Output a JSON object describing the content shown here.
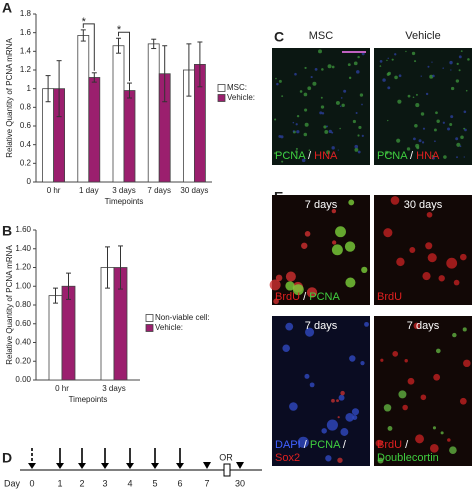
{
  "panel_labels": [
    "A",
    "B",
    "C",
    "D",
    "E"
  ],
  "chart_data": [
    {
      "type": "bar",
      "y_label": "Relative Quantity of PCNA mRNA",
      "x_label": "Timepoints",
      "categories": [
        "0 hr",
        "1 day",
        "3 days",
        "7 days",
        "30 days"
      ],
      "series": [
        {
          "name": "MSC:",
          "color": "#ffffff",
          "values": [
            1.0,
            1.57,
            1.46,
            1.48,
            1.2
          ],
          "errors": [
            0.14,
            0.06,
            0.08,
            0.05,
            0.28
          ]
        },
        {
          "name": "Vehicle:",
          "color": "#9b1f6e",
          "values": [
            1.0,
            1.12,
            0.98,
            1.16,
            1.26
          ],
          "errors": [
            0.3,
            0.05,
            0.08,
            0.3,
            0.24
          ]
        }
      ],
      "annotations": [
        "*",
        "*"
      ],
      "ylim": [
        0,
        1.8
      ],
      "yticks": [
        0,
        0.2,
        0.4,
        0.6,
        0.8,
        1,
        1.2,
        1.4,
        1.6,
        1.8
      ]
    },
    {
      "type": "bar",
      "y_label": "Relative Quantity of PCNA mRNA",
      "x_label": "Timepoints",
      "categories": [
        "0 hr",
        "3 days"
      ],
      "series": [
        {
          "name": "Non-viable cell:",
          "color": "#ffffff",
          "values": [
            0.9,
            1.2
          ],
          "errors": [
            0.08,
            0.22
          ]
        },
        {
          "name": "Vehicle:",
          "color": "#9b1f6e",
          "values": [
            1.0,
            1.2
          ],
          "errors": [
            0.14,
            0.23
          ]
        }
      ],
      "ylim": [
        0,
        1.6
      ],
      "yticks": [
        {
          "value": 0,
          "label": "0.00"
        },
        {
          "value": 0.2,
          "label": "0.20"
        },
        {
          "value": 0.4,
          "label": "0.40"
        },
        {
          "value": 0.6,
          "label": "0.60"
        },
        {
          "value": 0.8,
          "label": "0.80"
        },
        {
          "value": 1.0,
          "label": "1.00"
        },
        {
          "value": 1.2,
          "label": "1.20"
        },
        {
          "value": 1.4,
          "label": "1.40"
        },
        {
          "value": 1.6,
          "label": "1.60"
        }
      ]
    }
  ],
  "panel_c": {
    "columns": [
      "MSC",
      "Vehicle"
    ],
    "caption": [
      {
        "text": "PCNA",
        "color": "#3fcf3f"
      },
      {
        "text": "/",
        "color": "#ffffff"
      },
      {
        "text": "HNA",
        "color": "#e02020"
      }
    ]
  },
  "panel_e": {
    "titles": [
      "7 days",
      "30 days",
      "7 days",
      "7 days"
    ],
    "captions": [
      [
        [
          {
            "text": "BrdU",
            "color": "#e02020"
          },
          {
            "text": "/",
            "color": "#ffffff"
          },
          {
            "text": "PCNA",
            "color": "#3fcf3f"
          }
        ]
      ],
      [
        [
          {
            "text": "BrdU",
            "color": "#e02020"
          }
        ]
      ],
      [
        [
          {
            "text": "DAPI",
            "color": "#4060ff"
          },
          {
            "text": "/",
            "color": "#ffffff"
          },
          {
            "text": "PCNA",
            "color": "#3fcf3f"
          },
          {
            "text": "/",
            "color": "#ffffff"
          }
        ],
        [
          {
            "text": "Sox2",
            "color": "#e02020"
          }
        ]
      ],
      [
        [
          {
            "text": "BrdU",
            "color": "#e02020"
          },
          {
            "text": "/",
            "color": "#ffffff"
          }
        ],
        [
          {
            "text": "Doublecortin",
            "color": "#3fcf3f"
          }
        ]
      ]
    ]
  },
  "panel_d": {
    "label": "Day",
    "days": [
      0,
      1,
      2,
      3,
      4,
      5,
      6,
      7,
      30
    ],
    "or": "OR"
  }
}
